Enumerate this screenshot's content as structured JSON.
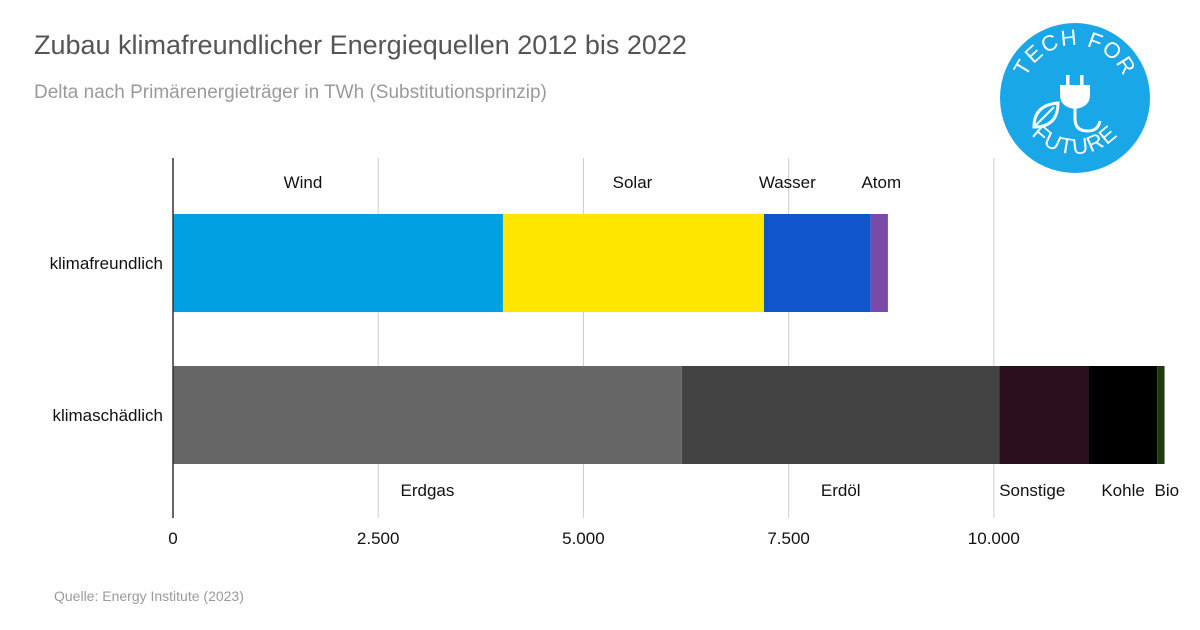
{
  "title": "Zubau klimafreundlicher Energiequellen 2012 bis 2022",
  "subtitle": "Delta nach Primärenergieträger in TWh (Substitutionsprinzip)",
  "source": "Quelle: Energy Institute (2023)",
  "logo": {
    "text_top": "TECH FOR",
    "text_bottom": "FUTURE",
    "icon": "plug-leaf-icon",
    "color": "#1aa7e8"
  },
  "chart_data": {
    "type": "bar",
    "orientation": "horizontal",
    "stacked": true,
    "title": "Zubau klimafreundlicher Energiequellen 2012 bis 2022",
    "subtitle": "Delta nach Primärenergieträger in TWh (Substitutionsprinzip)",
    "xlim": [
      0,
      12200
    ],
    "xticks": [
      0,
      2500,
      5000,
      7500,
      10000
    ],
    "xtick_labels": [
      "0",
      "2.500",
      "5.000",
      "7.500",
      "10.000"
    ],
    "grid": "vertical",
    "categories": [
      "klimafreundlich",
      "klimaschädlich"
    ],
    "rows": [
      {
        "category": "klimafreundlich",
        "label_position": "above",
        "segments": [
          {
            "name": "Wind",
            "value": 4020,
            "color": "#00a0e3"
          },
          {
            "name": "Solar",
            "value": 3180,
            "color": "#ffe600"
          },
          {
            "name": "Wasser",
            "value": 1300,
            "color": "#1155cc"
          },
          {
            "name": "Atom",
            "value": 210,
            "color": "#7b4aa6"
          }
        ]
      },
      {
        "category": "klimaschädlich",
        "label_position": "below",
        "segments": [
          {
            "name": "Erdgas",
            "value": 6200,
            "color": "#666666"
          },
          {
            "name": "Erdöl",
            "value": 3870,
            "color": "#434343"
          },
          {
            "name": "Sonstige",
            "value": 1090,
            "color": "#2a0f1f"
          },
          {
            "name": "Kohle",
            "value": 830,
            "color": "#000000"
          },
          {
            "name": "Bio",
            "value": 90,
            "color": "#1f3a0f"
          }
        ]
      }
    ]
  }
}
